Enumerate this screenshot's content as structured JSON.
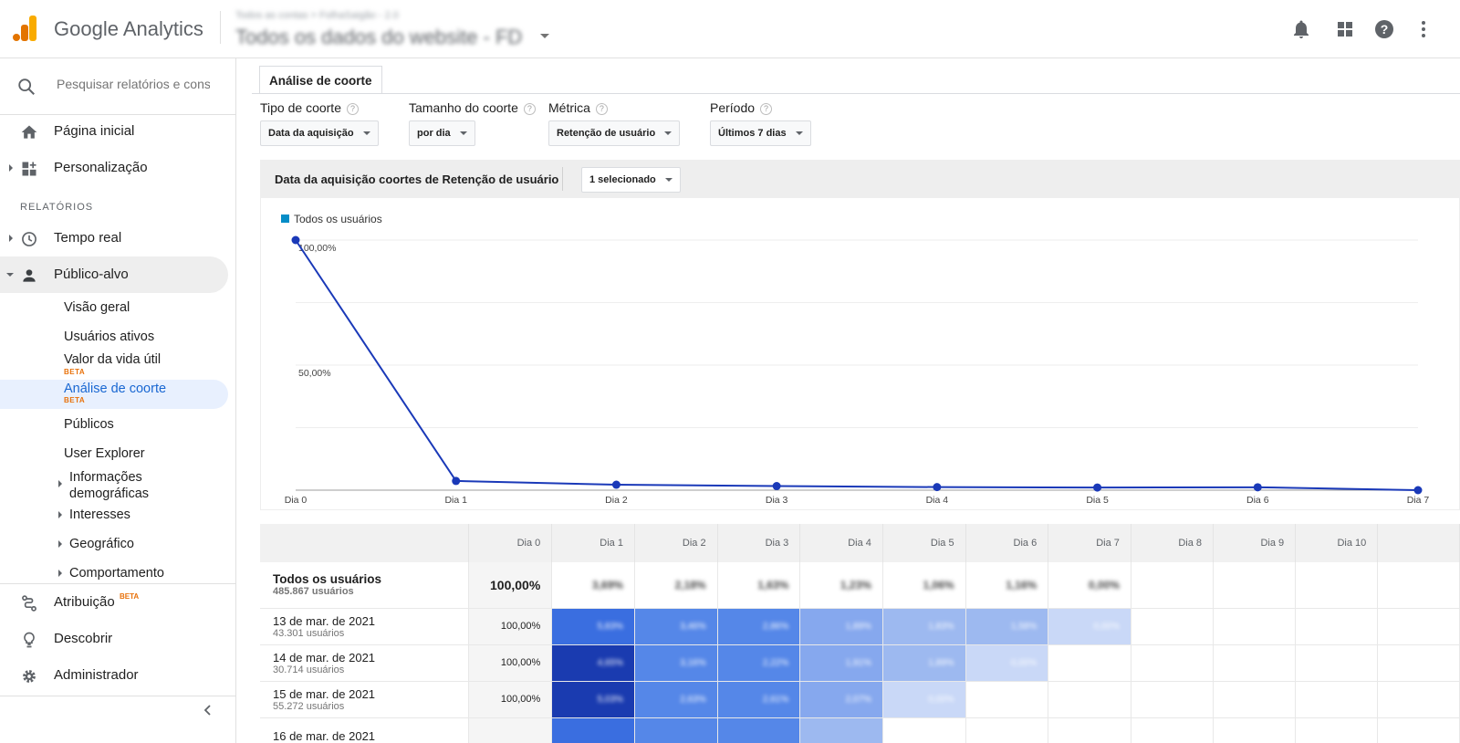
{
  "topbar": {
    "app_name": "Google Analytics",
    "account_path": "Todos as contas > FolhaSaigão - 2.0",
    "view_name": "Todos os dados do website - FD"
  },
  "sidebar": {
    "search_placeholder": "Pesquisar relatórios e conse",
    "home": "Página inicial",
    "customization": "Personalização",
    "section_reports": "RELATÓRIOS",
    "realtime": "Tempo real",
    "audience": "Público-alvo",
    "audience_items": {
      "overview": "Visão geral",
      "active_users": "Usuários ativos",
      "lifetime_value": "Valor da vida útil",
      "cohort": "Análise de coorte",
      "audiences": "Públicos",
      "user_explorer": "User Explorer",
      "demographics": "Informações demográficas",
      "interests": "Interesses",
      "geo": "Geográfico",
      "behavior": "Comportamento"
    },
    "beta": "BETA",
    "attribution": "Atribuição",
    "discover": "Descobrir",
    "admin": "Administrador"
  },
  "tab": "Análise de coorte",
  "controls": {
    "cohort_type_label": "Tipo de coorte",
    "cohort_type_value": "Data da aquisição",
    "cohort_size_label": "Tamanho do coorte",
    "cohort_size_value": "por dia",
    "metric_label": "Métrica",
    "metric_value": "Retenção de usuário",
    "period_label": "Período",
    "period_value": "Últimos 7 dias",
    "help": "?"
  },
  "chart_header": {
    "title": "Data da aquisição coortes de Retenção de usuário",
    "selected": "1 selecionado"
  },
  "colors": {
    "line": "#1a39b8",
    "legend": "#058dc7"
  },
  "chart_data": {
    "type": "line",
    "x": [
      "Dia 0",
      "Dia 1",
      "Dia 2",
      "Dia 3",
      "Dia 4",
      "Dia 5",
      "Dia 6",
      "Dia 7"
    ],
    "series": [
      {
        "name": "Todos os usuários",
        "values": [
          100,
          3.69,
          2.18,
          1.63,
          1.23,
          1.06,
          1.16,
          0.0
        ]
      }
    ],
    "y_ticks": [
      "100,00%",
      "50,00%"
    ],
    "ylim": [
      0,
      100
    ],
    "grid": true,
    "legend": "top-left"
  },
  "table": {
    "headers": [
      "Dia 0",
      "Dia 1",
      "Dia 2",
      "Dia 3",
      "Dia 4",
      "Dia 5",
      "Dia 6",
      "Dia 7",
      "Dia 8",
      "Dia 9",
      "Dia 10"
    ],
    "total": {
      "name": "Todos os usuários",
      "sub": "485.867 usuários",
      "values": [
        "100,00%",
        "3,69%",
        "2,18%",
        "1,63%",
        "1,23%",
        "1,06%",
        "1,16%",
        "0,00%"
      ]
    },
    "rows": [
      {
        "name": "13 de mar. de 2021",
        "sub": "43.301 usuários",
        "values": [
          "100,00%",
          "5,83%",
          "3,46%",
          "2,86%",
          "1,89%",
          "1,83%",
          "1,58%",
          "0,00%"
        ],
        "levels": [
          0,
          0.72,
          0.55,
          0.55,
          0.38,
          0.32,
          0.32,
          0.15
        ]
      },
      {
        "name": "14 de mar. de 2021",
        "sub": "30.714 usuários",
        "values": [
          "100,00%",
          "4,65%",
          "3,16%",
          "2,22%",
          "1,91%",
          "1,89%",
          "0,00%"
        ],
        "levels": [
          0,
          1.0,
          0.55,
          0.55,
          0.38,
          0.32,
          0.15
        ]
      },
      {
        "name": "15 de mar. de 2021",
        "sub": "55.272 usuários",
        "values": [
          "100,00%",
          "5,03%",
          "2,63%",
          "2,61%",
          "2,07%",
          "0,00%"
        ],
        "levels": [
          0,
          1.0,
          0.55,
          0.55,
          0.38,
          0.15
        ]
      },
      {
        "name": "16 de mar. de 2021",
        "sub": "",
        "values": [
          "",
          "",
          "",
          "",
          ""
        ],
        "levels": [
          0,
          0.72,
          0.55,
          0.55,
          0.3
        ]
      }
    ]
  }
}
